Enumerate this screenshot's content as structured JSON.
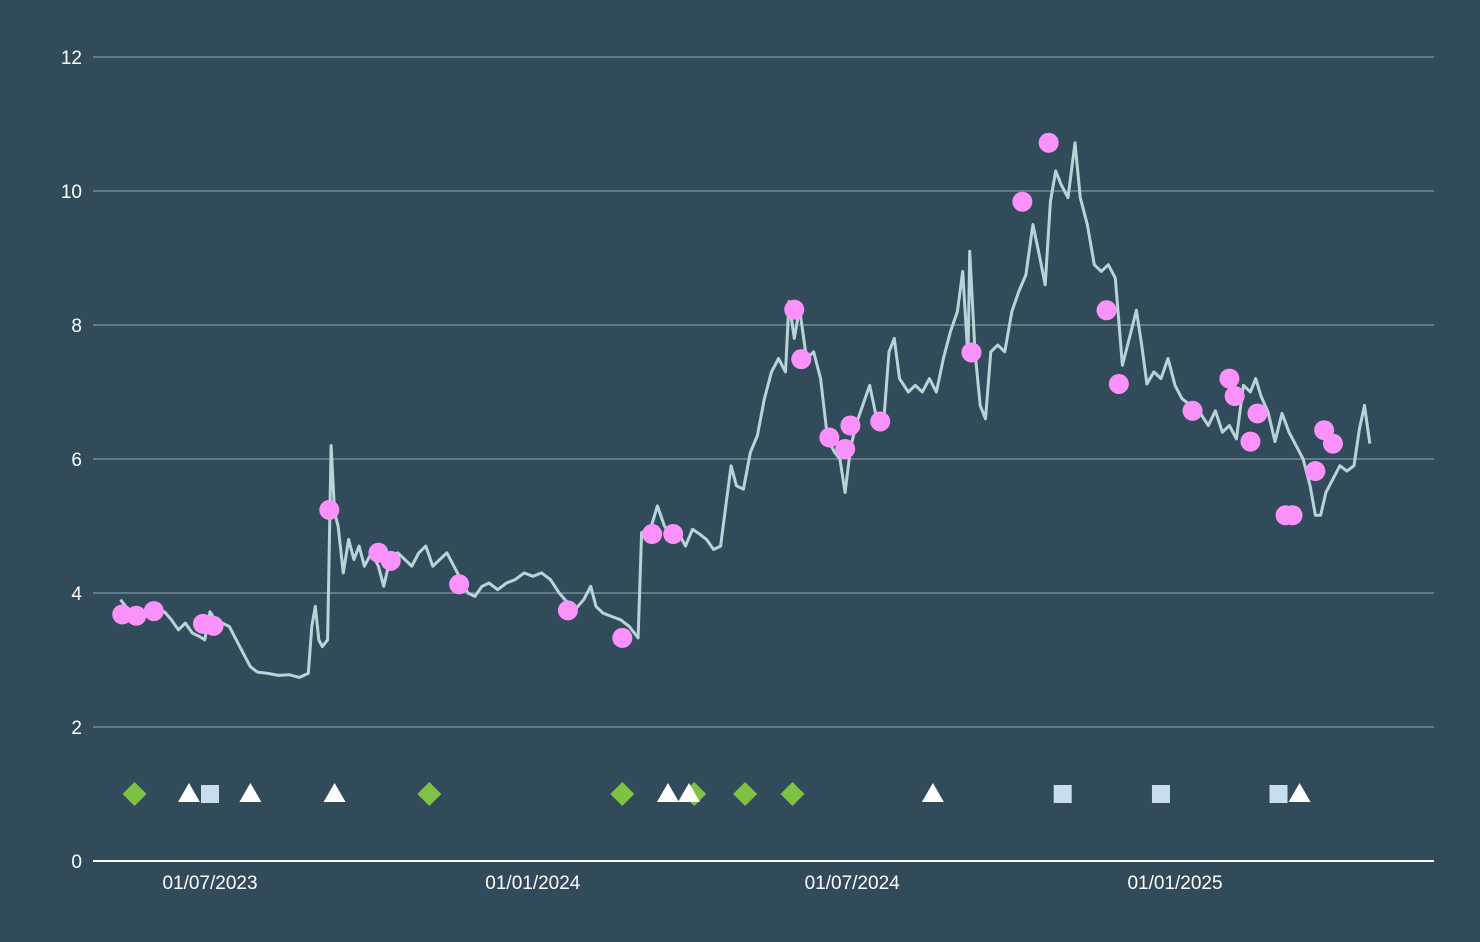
{
  "chart_data": {
    "type": "line",
    "title": "",
    "xlabel": "",
    "ylabel": "",
    "grid": true,
    "colors": {
      "background": "#314b5a",
      "line": "#b8d4d8",
      "points": "#fb92fb",
      "diamond": "#7dc243",
      "triangle": "#ffffff",
      "square": "#c6def0",
      "grid": "#7f98a4"
    },
    "x_range": [
      "2023-04-20",
      "2025-05-20"
    ],
    "ylim": [
      0,
      12
    ],
    "y_ticks": [
      0,
      2,
      4,
      6,
      8,
      10,
      12
    ],
    "y_tick_labels": [
      "0",
      "2",
      "4",
      "6",
      "8",
      "10",
      "12"
    ],
    "x_ticks": [
      "2023-07-01",
      "2024-01-01",
      "2024-07-01",
      "2025-01-01"
    ],
    "x_tick_labels": [
      "01/07/2023",
      "01/01/2024",
      "01/07/2024",
      "01/01/2025"
    ],
    "series": [
      {
        "type": "line",
        "points": [
          [
            "2023-05-11",
            3.9
          ],
          [
            "2023-05-14",
            3.8
          ],
          [
            "2023-05-18",
            3.7
          ],
          [
            "2023-05-23",
            3.68
          ],
          [
            "2023-05-27",
            3.66
          ],
          [
            "2023-06-01",
            3.7
          ],
          [
            "2023-06-05",
            3.72
          ],
          [
            "2023-06-09",
            3.6
          ],
          [
            "2023-06-13",
            3.45
          ],
          [
            "2023-06-17",
            3.55
          ],
          [
            "2023-06-21",
            3.4
          ],
          [
            "2023-06-25",
            3.35
          ],
          [
            "2023-06-28",
            3.3
          ],
          [
            "2023-07-01",
            3.72
          ],
          [
            "2023-07-04",
            3.6
          ],
          [
            "2023-07-08",
            3.55
          ],
          [
            "2023-07-12",
            3.5
          ],
          [
            "2023-07-16",
            3.3
          ],
          [
            "2023-07-20",
            3.1
          ],
          [
            "2023-07-24",
            2.9
          ],
          [
            "2023-07-28",
            2.82
          ],
          [
            "2023-08-03",
            2.8
          ],
          [
            "2023-08-09",
            2.77
          ],
          [
            "2023-08-15",
            2.78
          ],
          [
            "2023-08-21",
            2.74
          ],
          [
            "2023-08-26",
            2.8
          ],
          [
            "2023-08-28",
            3.5
          ],
          [
            "2023-08-30",
            3.8
          ],
          [
            "2023-09-01",
            3.3
          ],
          [
            "2023-09-03",
            3.2
          ],
          [
            "2023-09-06",
            3.3
          ],
          [
            "2023-09-08",
            6.2
          ],
          [
            "2023-09-10",
            5.2
          ],
          [
            "2023-09-12",
            5.0
          ],
          [
            "2023-09-15",
            4.3
          ],
          [
            "2023-09-18",
            4.8
          ],
          [
            "2023-09-21",
            4.5
          ],
          [
            "2023-09-24",
            4.7
          ],
          [
            "2023-09-27",
            4.4
          ],
          [
            "2023-10-01",
            4.6
          ],
          [
            "2023-10-05",
            4.4
          ],
          [
            "2023-10-08",
            4.1
          ],
          [
            "2023-10-12",
            4.55
          ],
          [
            "2023-10-16",
            4.6
          ],
          [
            "2023-10-20",
            4.5
          ],
          [
            "2023-10-24",
            4.4
          ],
          [
            "2023-10-28",
            4.6
          ],
          [
            "2023-11-01",
            4.7
          ],
          [
            "2023-11-05",
            4.4
          ],
          [
            "2023-11-09",
            4.5
          ],
          [
            "2023-11-13",
            4.6
          ],
          [
            "2023-11-17",
            4.4
          ],
          [
            "2023-11-21",
            4.2
          ],
          [
            "2023-11-25",
            4.0
          ],
          [
            "2023-11-29",
            3.95
          ],
          [
            "2023-12-03",
            4.1
          ],
          [
            "2023-12-07",
            4.15
          ],
          [
            "2023-12-12",
            4.05
          ],
          [
            "2023-12-17",
            4.15
          ],
          [
            "2023-12-22",
            4.2
          ],
          [
            "2023-12-27",
            4.3
          ],
          [
            "2024-01-01",
            4.25
          ],
          [
            "2024-01-06",
            4.3
          ],
          [
            "2024-01-11",
            4.2
          ],
          [
            "2024-01-16",
            4.0
          ],
          [
            "2024-01-21",
            3.85
          ],
          [
            "2024-01-25",
            3.75
          ],
          [
            "2024-01-30",
            3.9
          ],
          [
            "2024-02-03",
            4.1
          ],
          [
            "2024-02-06",
            3.8
          ],
          [
            "2024-02-10",
            3.7
          ],
          [
            "2024-02-15",
            3.65
          ],
          [
            "2024-02-20",
            3.6
          ],
          [
            "2024-02-25",
            3.5
          ],
          [
            "2024-03-01",
            3.33
          ],
          [
            "2024-03-03",
            4.9
          ],
          [
            "2024-03-08",
            4.95
          ],
          [
            "2024-03-12",
            5.3
          ],
          [
            "2024-03-16",
            5.0
          ],
          [
            "2024-03-20",
            4.85
          ],
          [
            "2024-03-24",
            4.9
          ],
          [
            "2024-03-28",
            4.7
          ],
          [
            "2024-04-01",
            4.95
          ],
          [
            "2024-04-05",
            4.88
          ],
          [
            "2024-04-09",
            4.8
          ],
          [
            "2024-04-13",
            4.65
          ],
          [
            "2024-04-17",
            4.7
          ],
          [
            "2024-04-20",
            5.3
          ],
          [
            "2024-04-23",
            5.9
          ],
          [
            "2024-04-26",
            5.6
          ],
          [
            "2024-04-30",
            5.55
          ],
          [
            "2024-05-04",
            6.1
          ],
          [
            "2024-05-08",
            6.35
          ],
          [
            "2024-05-12",
            6.9
          ],
          [
            "2024-05-16",
            7.3
          ],
          [
            "2024-05-20",
            7.5
          ],
          [
            "2024-05-24",
            7.3
          ],
          [
            "2024-05-26",
            8.35
          ],
          [
            "2024-05-29",
            7.8
          ],
          [
            "2024-06-01",
            8.25
          ],
          [
            "2024-06-05",
            7.5
          ],
          [
            "2024-06-09",
            7.6
          ],
          [
            "2024-06-13",
            7.2
          ],
          [
            "2024-06-17",
            6.3
          ],
          [
            "2024-06-21",
            6.1
          ],
          [
            "2024-06-24",
            6.0
          ],
          [
            "2024-06-27",
            5.5
          ],
          [
            "2024-06-30",
            6.15
          ],
          [
            "2024-07-03",
            6.5
          ],
          [
            "2024-07-07",
            6.8
          ],
          [
            "2024-07-11",
            7.1
          ],
          [
            "2024-07-15",
            6.6
          ],
          [
            "2024-07-19",
            6.56
          ],
          [
            "2024-07-22",
            7.6
          ],
          [
            "2024-07-25",
            7.8
          ],
          [
            "2024-07-28",
            7.2
          ],
          [
            "2024-08-02",
            7.0
          ],
          [
            "2024-08-06",
            7.1
          ],
          [
            "2024-08-10",
            7.0
          ],
          [
            "2024-08-14",
            7.2
          ],
          [
            "2024-08-18",
            7.0
          ],
          [
            "2024-08-22",
            7.5
          ],
          [
            "2024-08-26",
            7.9
          ],
          [
            "2024-08-30",
            8.2
          ],
          [
            "2024-09-02",
            8.8
          ],
          [
            "2024-09-05",
            7.5
          ],
          [
            "2024-09-06",
            9.1
          ],
          [
            "2024-09-09",
            7.6
          ],
          [
            "2024-09-12",
            6.8
          ],
          [
            "2024-09-15",
            6.6
          ],
          [
            "2024-09-18",
            7.6
          ],
          [
            "2024-09-22",
            7.7
          ],
          [
            "2024-09-26",
            7.6
          ],
          [
            "2024-09-30",
            8.2
          ],
          [
            "2024-10-04",
            8.5
          ],
          [
            "2024-10-08",
            8.75
          ],
          [
            "2024-10-12",
            9.5
          ],
          [
            "2024-10-16",
            9.0
          ],
          [
            "2024-10-19",
            8.6
          ],
          [
            "2024-10-22",
            9.84
          ],
          [
            "2024-10-25",
            10.3
          ],
          [
            "2024-10-28",
            10.1
          ],
          [
            "2024-11-01",
            9.9
          ],
          [
            "2024-11-05",
            10.72
          ],
          [
            "2024-11-08",
            9.9
          ],
          [
            "2024-11-12",
            9.5
          ],
          [
            "2024-11-16",
            8.9
          ],
          [
            "2024-11-20",
            8.8
          ],
          [
            "2024-11-24",
            8.9
          ],
          [
            "2024-11-28",
            8.7
          ],
          [
            "2024-12-02",
            7.4
          ],
          [
            "2024-12-05",
            7.7
          ],
          [
            "2024-12-10",
            8.22
          ],
          [
            "2024-12-13",
            7.7
          ],
          [
            "2024-12-16",
            7.12
          ],
          [
            "2024-12-20",
            7.3
          ],
          [
            "2024-12-24",
            7.2
          ],
          [
            "2024-12-28",
            7.5
          ],
          [
            "2025-01-01",
            7.1
          ],
          [
            "2025-01-05",
            6.9
          ],
          [
            "2025-01-10",
            6.8
          ],
          [
            "2025-01-15",
            6.7
          ],
          [
            "2025-01-20",
            6.5
          ],
          [
            "2025-01-24",
            6.72
          ],
          [
            "2025-01-28",
            6.4
          ],
          [
            "2025-02-01",
            6.5
          ],
          [
            "2025-02-05",
            6.3
          ],
          [
            "2025-02-09",
            7.1
          ],
          [
            "2025-02-13",
            7.0
          ],
          [
            "2025-02-16",
            7.2
          ],
          [
            "2025-02-19",
            6.94
          ],
          [
            "2025-02-23",
            6.7
          ],
          [
            "2025-02-27",
            6.26
          ],
          [
            "2025-03-03",
            6.68
          ],
          [
            "2025-03-07",
            6.4
          ],
          [
            "2025-03-11",
            6.2
          ],
          [
            "2025-03-15",
            6.0
          ],
          [
            "2025-03-19",
            5.6
          ],
          [
            "2025-03-22",
            5.16
          ],
          [
            "2025-03-25",
            5.16
          ],
          [
            "2025-03-28",
            5.5
          ],
          [
            "2025-04-01",
            5.7
          ],
          [
            "2025-04-05",
            5.9
          ],
          [
            "2025-04-09",
            5.82
          ],
          [
            "2025-04-13",
            5.9
          ],
          [
            "2025-04-16",
            6.43
          ],
          [
            "2025-04-19",
            6.8
          ],
          [
            "2025-04-22",
            6.23
          ]
        ]
      },
      {
        "type": "scatter",
        "marker": "circle",
        "points": [
          [
            "2023-05-12",
            3.68
          ],
          [
            "2023-05-20",
            3.66
          ],
          [
            "2023-05-30",
            3.73
          ],
          [
            "2023-06-27",
            3.54
          ],
          [
            "2023-07-03",
            3.51
          ],
          [
            "2023-09-07",
            5.24
          ],
          [
            "2023-10-05",
            4.6
          ],
          [
            "2023-10-12",
            4.48
          ],
          [
            "2023-11-20",
            4.13
          ],
          [
            "2024-01-21",
            3.74
          ],
          [
            "2024-02-21",
            3.33
          ],
          [
            "2024-03-09",
            4.88
          ],
          [
            "2024-03-21",
            4.88
          ],
          [
            "2024-05-29",
            8.23
          ],
          [
            "2024-06-02",
            7.49
          ],
          [
            "2024-06-18",
            6.32
          ],
          [
            "2024-06-27",
            6.15
          ],
          [
            "2024-06-30",
            6.5
          ],
          [
            "2024-07-17",
            6.56
          ],
          [
            "2024-09-07",
            7.59
          ],
          [
            "2024-10-06",
            9.84
          ],
          [
            "2024-10-21",
            10.72
          ],
          [
            "2024-11-23",
            8.22
          ],
          [
            "2024-11-30",
            7.12
          ],
          [
            "2025-01-11",
            6.72
          ],
          [
            "2025-02-01",
            7.2
          ],
          [
            "2025-02-04",
            6.94
          ],
          [
            "2025-02-13",
            6.26
          ],
          [
            "2025-02-17",
            6.68
          ],
          [
            "2025-03-05",
            5.16
          ],
          [
            "2025-03-09",
            5.16
          ],
          [
            "2025-03-22",
            5.82
          ],
          [
            "2025-03-27",
            6.43
          ],
          [
            "2025-04-01",
            6.23
          ]
        ]
      },
      {
        "type": "scatter",
        "marker": "diamond",
        "points": [
          [
            "2023-05-19",
            1.0
          ],
          [
            "2023-11-03",
            1.0
          ],
          [
            "2024-02-21",
            1.0
          ],
          [
            "2024-04-02",
            1.0
          ],
          [
            "2024-05-01",
            1.0
          ],
          [
            "2024-05-28",
            1.0
          ]
        ]
      },
      {
        "type": "scatter",
        "marker": "triangle",
        "points": [
          [
            "2023-06-19",
            1.0
          ],
          [
            "2023-07-24",
            1.0
          ],
          [
            "2023-09-10",
            1.0
          ],
          [
            "2024-03-18",
            1.0
          ],
          [
            "2024-03-30",
            1.0
          ],
          [
            "2024-08-16",
            1.0
          ],
          [
            "2025-03-13",
            1.0
          ]
        ]
      },
      {
        "type": "scatter",
        "marker": "square",
        "points": [
          [
            "2023-07-01",
            1.0
          ],
          [
            "2024-10-29",
            1.0
          ],
          [
            "2024-12-24",
            1.0
          ],
          [
            "2025-03-01",
            1.0
          ]
        ]
      }
    ]
  }
}
